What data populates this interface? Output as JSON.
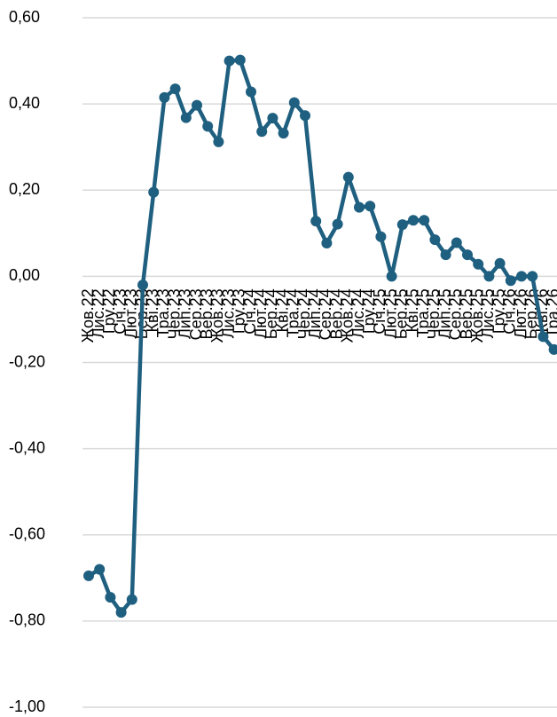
{
  "chart_data": {
    "type": "line",
    "categories": [
      "Жов.22",
      "Лис.22",
      "Гру.22",
      "Січ.23",
      "Лют.23",
      "Бер.23",
      "Кві.23",
      "Тра.23",
      "Чер.23",
      "Лип.23",
      "Сер.23",
      "Вер.23",
      "Жов.23",
      "Лис.23",
      "Гру.23",
      "Січ.24",
      "Лют.24",
      "Бер.24",
      "Кві.24",
      "Тра.24",
      "Чер.24",
      "Лип.24",
      "Сер.24",
      "Вер.24",
      "Жов.24",
      "Лис.24",
      "Гру.24",
      "Січ.25",
      "Лют.25",
      "Бер.25",
      "Кві.25",
      "Тра.25",
      "Чер.25",
      "Лип.25",
      "Сер.25",
      "Вер.25",
      "Жов.25",
      "Лис.25",
      "Гру.25",
      "Січ.26",
      "Лют.26",
      "Бер.26",
      "Кві.26",
      "Тра.26"
    ],
    "values": [
      -0.695,
      -0.68,
      -0.745,
      -0.78,
      -0.75,
      -0.02,
      0.195,
      0.415,
      0.435,
      0.368,
      0.397,
      0.348,
      0.312,
      0.5,
      0.502,
      0.428,
      0.336,
      0.367,
      0.332,
      0.403,
      0.373,
      0.128,
      0.077,
      0.121,
      0.23,
      0.16,
      0.163,
      0.092,
      0.0,
      0.12,
      0.13,
      0.13,
      0.085,
      0.05,
      0.078,
      0.05,
      0.028,
      0.0,
      0.03,
      -0.01,
      0.0,
      0.0,
      -0.14,
      -0.17
    ],
    "color": "#1f5f80",
    "ylim": [
      -1.0,
      0.6
    ],
    "yticks": [
      {
        "value": -1.0,
        "label": "-1,00"
      },
      {
        "value": -0.8,
        "label": "-0,80"
      },
      {
        "value": -0.6,
        "label": "-0,60"
      },
      {
        "value": -0.4,
        "label": "-0,40"
      },
      {
        "value": -0.2,
        "label": "-0,20"
      },
      {
        "value": 0.0,
        "label": "0,00"
      },
      {
        "value": 0.2,
        "label": "0,20"
      },
      {
        "value": 0.4,
        "label": "0,40"
      },
      {
        "value": 0.6,
        "label": "0,60"
      }
    ],
    "grid": true
  }
}
